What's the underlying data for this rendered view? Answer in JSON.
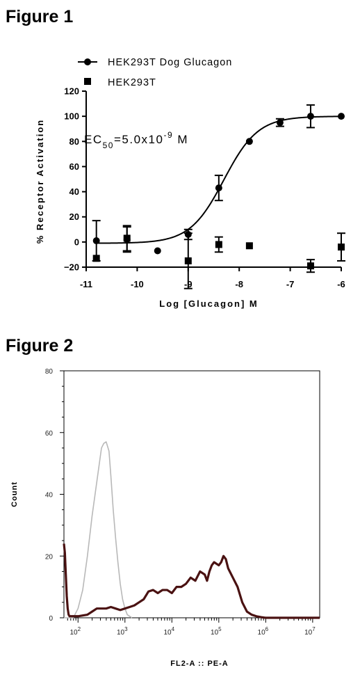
{
  "figure1": {
    "title": "Figure 1",
    "annotation": {
      "prefix": "EC",
      "sub": "50",
      "mid": "=5.0x10",
      "sup": "-9",
      "suffix": " M"
    },
    "chart_data": {
      "type": "scatter",
      "xlabel": "Log [Glucagon] M",
      "ylabel": "% Receptor Activation",
      "xlim": [
        -11,
        -6
      ],
      "ylim": [
        -20,
        120
      ],
      "x_ticks": [
        -11,
        -10,
        -9,
        -8,
        -7,
        -6
      ],
      "y_ticks": [
        -20,
        0,
        20,
        40,
        60,
        80,
        100,
        120
      ],
      "legend_placement": "top-left",
      "series": [
        {
          "name": "HEK293T Dog Glucagon",
          "marker": "circle",
          "points": [
            {
              "x": -10.8,
              "y": 1,
              "err": 16
            },
            {
              "x": -10.2,
              "y": 2,
              "err": 10
            },
            {
              "x": -9.6,
              "y": -7,
              "err": 0
            },
            {
              "x": -9.0,
              "y": 6,
              "err": 4
            },
            {
              "x": -8.4,
              "y": 43,
              "err": 10
            },
            {
              "x": -7.8,
              "y": 80,
              "err": 0
            },
            {
              "x": -7.2,
              "y": 95,
              "err": 3
            },
            {
              "x": -6.6,
              "y": 100,
              "err": 9
            },
            {
              "x": -6.0,
              "y": 100,
              "err": 0
            }
          ],
          "fit": {
            "bottom": -1,
            "top": 100,
            "logEC50": -8.3,
            "hillslope": 1.3
          }
        },
        {
          "name": "HEK293T",
          "marker": "square",
          "points": [
            {
              "x": -10.8,
              "y": -13,
              "err": 0
            },
            {
              "x": -10.2,
              "y": 3,
              "err": 10
            },
            {
              "x": -9.0,
              "y": -15,
              "err": 22
            },
            {
              "x": -8.4,
              "y": -2,
              "err": 6
            },
            {
              "x": -7.8,
              "y": -3,
              "err": 0
            },
            {
              "x": -6.6,
              "y": -19,
              "err": 5
            },
            {
              "x": -6.0,
              "y": -4,
              "err": 11
            }
          ]
        }
      ]
    }
  },
  "figure2": {
    "title": "Figure 2",
    "chart_data": {
      "type": "area",
      "xlabel": "FL2-A :: PE-A",
      "ylabel": "Count",
      "x_scale": "log",
      "xlim": [
        1.7,
        7.15
      ],
      "ylim": [
        0,
        80
      ],
      "y_ticks": [
        0,
        20,
        40,
        60,
        80
      ],
      "x_tick_exponents": [
        2,
        3,
        4,
        5,
        6,
        7
      ],
      "x_tick_base": "10",
      "series": [
        {
          "name": "",
          "color": "#b8b8b8",
          "x": [
            1.7,
            1.9,
            2.0,
            2.1,
            2.2,
            2.3,
            2.4,
            2.5,
            2.55,
            2.6,
            2.66,
            2.7,
            2.75,
            2.8,
            2.85,
            2.9,
            2.95,
            3.0,
            3.05,
            3.1,
            3.15
          ],
          "y": [
            0,
            0,
            3,
            9,
            20,
            33,
            44,
            55,
            56.5,
            57,
            54,
            46,
            35,
            26,
            18,
            11,
            6,
            3,
            1,
            0.5,
            0
          ]
        },
        {
          "name": "",
          "color": "#4a1212",
          "x": [
            1.7,
            1.72,
            1.74,
            1.76,
            1.78,
            1.8,
            1.82,
            1.85,
            1.9,
            2.0,
            2.2,
            2.3,
            2.4,
            2.5,
            2.6,
            2.7,
            2.8,
            2.9,
            3.0,
            3.1,
            3.2,
            3.3,
            3.4,
            3.5,
            3.6,
            3.7,
            3.8,
            3.9,
            4.0,
            4.1,
            4.2,
            4.3,
            4.4,
            4.5,
            4.6,
            4.7,
            4.75,
            4.8,
            4.85,
            4.9,
            5.0,
            5.05,
            5.1,
            5.15,
            5.2,
            5.3,
            5.4,
            5.5,
            5.6,
            5.7,
            5.8,
            5.9,
            6.0,
            6.2,
            6.5,
            7.15
          ],
          "y": [
            24,
            21,
            14,
            7,
            3,
            1,
            0.5,
            0.5,
            0.5,
            0.5,
            1,
            2,
            3,
            3,
            3,
            3.5,
            3,
            2.5,
            3,
            3.5,
            4,
            5,
            6,
            8.5,
            9,
            8,
            9,
            9,
            8,
            10,
            10,
            11,
            13,
            12,
            15,
            14,
            12,
            15,
            17,
            18,
            17,
            18,
            20,
            19,
            16,
            13,
            10,
            5,
            2,
            1,
            0.5,
            0.2,
            0,
            0,
            0,
            0
          ]
        }
      ]
    }
  }
}
